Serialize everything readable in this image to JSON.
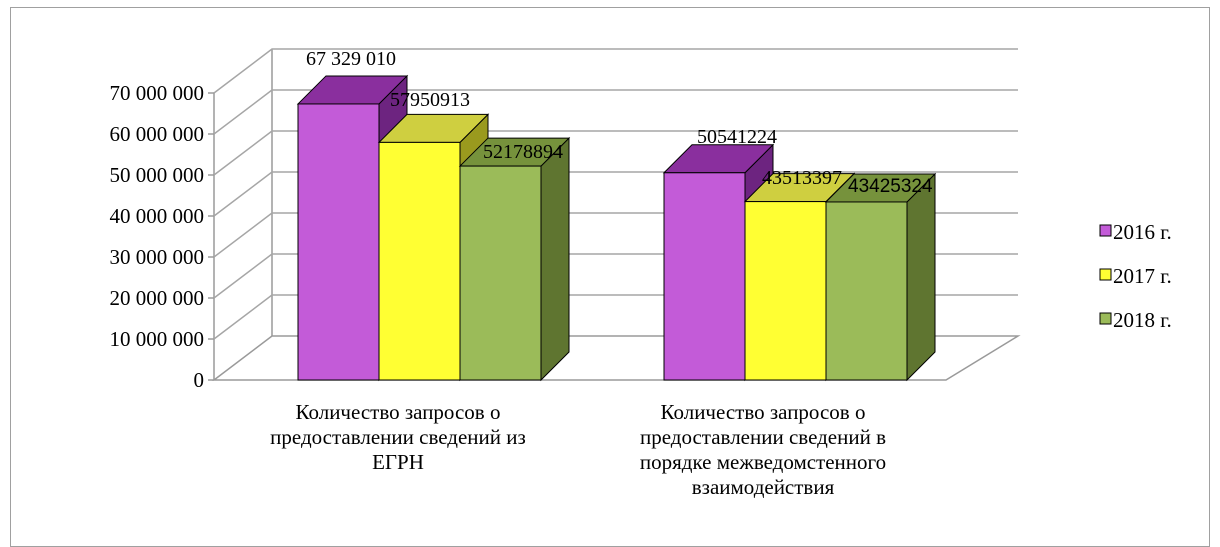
{
  "chart_data": {
    "type": "bar",
    "categories": [
      [
        "Количество запросов о",
        "предоставлении сведений из",
        "ЕГРН"
      ],
      [
        "Количество запросов о",
        "предоставлении сведений в",
        "порядке межведомстенного",
        "взаимодействия"
      ]
    ],
    "series": [
      {
        "name": "2016 г.",
        "values": [
          67329010,
          50541224
        ],
        "labels": [
          "67 329 010",
          "50541224"
        ]
      },
      {
        "name": "2017 г.",
        "values": [
          57950913,
          43513397
        ],
        "labels": [
          "57950913",
          "43513397"
        ]
      },
      {
        "name": "2018 г.",
        "values": [
          52178894,
          43425324
        ],
        "labels": [
          "52178894",
          "43425324"
        ]
      }
    ],
    "y_ticks": [
      "0",
      "10 000 000",
      "20 000 000",
      "30 000 000",
      "40 000 000",
      "50 000 000",
      "60 000 000",
      "70 000 000"
    ],
    "ylim": [
      0,
      70000000
    ],
    "grid": true,
    "legend_position": "right",
    "colors": {
      "2016 г.": {
        "front": "#c35bd8",
        "top": "#8a2f9e",
        "side": "#6d2480"
      },
      "2017 г.": {
        "front": "#ffff33",
        "top": "#cfcf40",
        "side": "#9a9a1e"
      },
      "2018 г.": {
        "front": "#9bbb59",
        "top": "#76923c",
        "side": "#5f7530"
      }
    }
  }
}
